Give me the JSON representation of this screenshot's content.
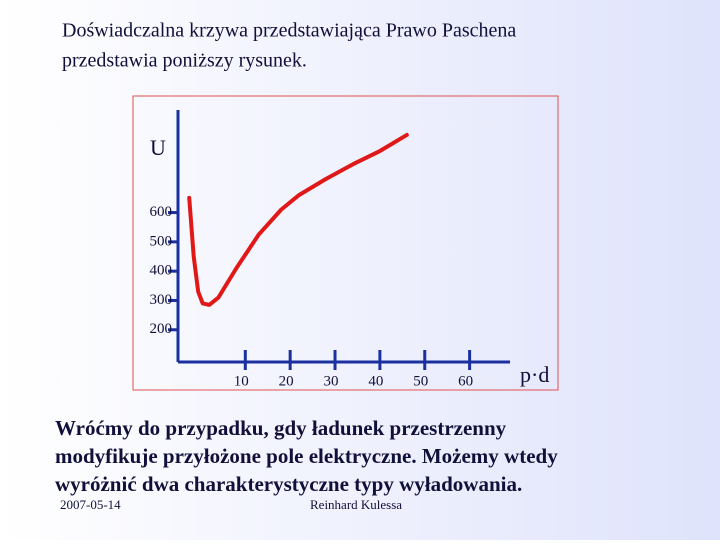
{
  "slide": {
    "title": [
      "Doświadczalna krzywa przedstawiająca Prawo Paschena",
      "przedstawia poniższy rysunek."
    ],
    "body": [
      "Wróćmy do przypadku, gdy ładunek przestrzenny",
      "modyfikuje przyłożone pole elektryczne. Możemy wtedy",
      "wyróżnić dwa charakterystyczne typy wyładowania."
    ],
    "date": "2007-05-14",
    "author": "Reinhard Kulessa"
  },
  "chart_data": {
    "type": "line",
    "ylabel": "U",
    "xlabel": "p·d",
    "x": [
      -2.5,
      -1.5,
      -0.5,
      0.5,
      2,
      4,
      8,
      13,
      18,
      22,
      28,
      34,
      40,
      46
    ],
    "series": [
      {
        "color": "#e01818",
        "values": [
          650,
          450,
          330,
          290,
          285,
          310,
          410,
          525,
          610,
          660,
          715,
          765,
          810,
          865
        ]
      }
    ],
    "xlim": [
      -5,
      69
    ],
    "xticks": [
      10,
      20,
      30,
      40,
      50,
      60
    ],
    "ylim": [
      90,
      950
    ],
    "yticks": [
      200,
      300,
      400,
      500,
      600
    ]
  }
}
